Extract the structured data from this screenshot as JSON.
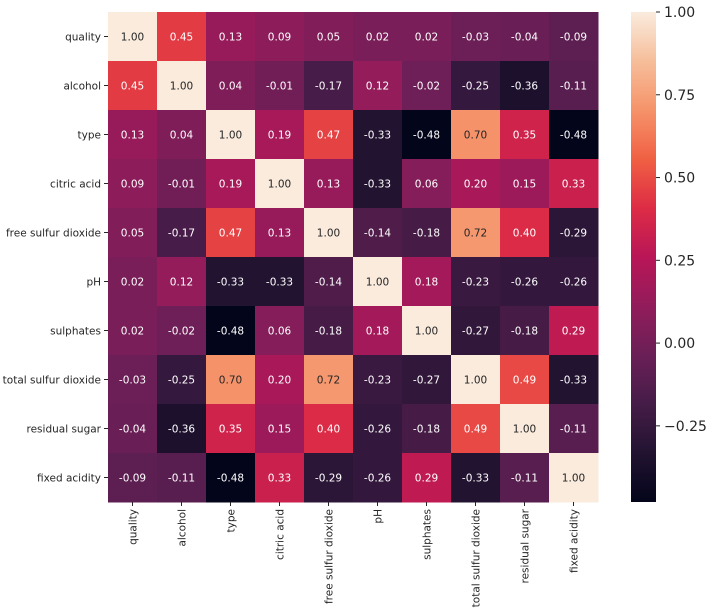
{
  "chart_data": {
    "type": "heatmap",
    "title": "",
    "xlabel": "",
    "ylabel": "",
    "colormap": "rocket",
    "vmin": -0.48,
    "vmax": 1.0,
    "rows": [
      "quality",
      "alcohol",
      "type",
      "citric acid",
      "free sulfur dioxide",
      "pH",
      "sulphates",
      "total sulfur dioxide",
      "residual sugar",
      "fixed acidity"
    ],
    "columns": [
      "quality",
      "alcohol",
      "type",
      "citric acid",
      "free sulfur dioxide",
      "pH",
      "sulphates",
      "total sulfur dioxide",
      "residual sugar",
      "fixed acidity"
    ],
    "values": [
      [
        1.0,
        0.45,
        0.13,
        0.09,
        0.05,
        0.02,
        0.02,
        -0.03,
        -0.04,
        -0.09
      ],
      [
        0.45,
        1.0,
        0.04,
        -0.01,
        -0.17,
        0.12,
        -0.02,
        -0.25,
        -0.36,
        -0.11
      ],
      [
        0.13,
        0.04,
        1.0,
        0.19,
        0.47,
        -0.33,
        -0.48,
        0.7,
        0.35,
        -0.48
      ],
      [
        0.09,
        -0.01,
        0.19,
        1.0,
        0.13,
        -0.33,
        0.06,
        0.2,
        0.15,
        0.33
      ],
      [
        0.05,
        -0.17,
        0.47,
        0.13,
        1.0,
        -0.14,
        -0.18,
        0.72,
        0.4,
        -0.29
      ],
      [
        0.02,
        0.12,
        -0.33,
        -0.33,
        -0.14,
        1.0,
        0.18,
        -0.23,
        -0.26,
        -0.26
      ],
      [
        0.02,
        -0.02,
        -0.48,
        0.06,
        -0.18,
        0.18,
        1.0,
        -0.27,
        -0.18,
        0.29
      ],
      [
        -0.03,
        -0.25,
        0.7,
        0.2,
        0.72,
        -0.23,
        -0.27,
        1.0,
        0.49,
        -0.33
      ],
      [
        -0.04,
        -0.36,
        0.35,
        0.15,
        0.4,
        -0.26,
        -0.18,
        0.49,
        1.0,
        -0.11
      ],
      [
        -0.09,
        -0.11,
        -0.48,
        0.33,
        -0.29,
        -0.26,
        0.29,
        -0.33,
        -0.11,
        1.0
      ]
    ],
    "colorbar": {
      "ticks": [
        1.0,
        0.75,
        0.5,
        0.25,
        0.0,
        -0.25
      ],
      "tick_labels": [
        "1.00",
        "0.75",
        "0.50",
        "0.25",
        "0.00",
        "−0.25"
      ],
      "placement": "right"
    },
    "annotations_format": "0.00",
    "grid": false
  }
}
